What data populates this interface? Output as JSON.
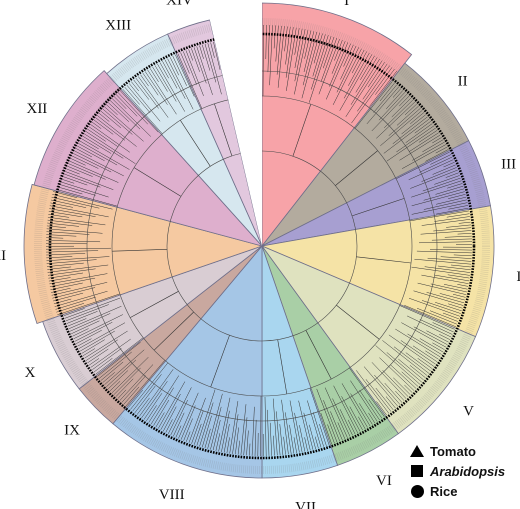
{
  "clades": [
    {
      "label": "I",
      "color": "#f7a3a8"
    },
    {
      "label": "II",
      "color": "#b3ab9e"
    },
    {
      "label": "III",
      "color": "#a79fd1"
    },
    {
      "label": "IV",
      "color": "#f5e3a6"
    },
    {
      "label": "V",
      "color": "#dfe2bf"
    },
    {
      "label": "VI",
      "color": "#a9cfa6"
    },
    {
      "label": "VII",
      "color": "#a9d6ef"
    },
    {
      "label": "VIII",
      "color": "#a5c6e6"
    },
    {
      "label": "IX",
      "color": "#c9a89f"
    },
    {
      "label": "X",
      "color": "#d9cdd3"
    },
    {
      "label": "XI",
      "color": "#f5c9a1"
    },
    {
      "label": "XII",
      "color": "#deafcd"
    },
    {
      "label": "XIII",
      "color": "#d6e7ef"
    },
    {
      "label": "XIV",
      "color": "#e2c8de"
    }
  ],
  "legend": [
    {
      "symbol": "triangle-icon",
      "label": "Tomato",
      "italic": false
    },
    {
      "symbol": "square-icon",
      "label": "Arabidopsis",
      "italic": true
    },
    {
      "symbol": "circle-icon",
      "label": "Rice",
      "italic": false
    }
  ]
}
